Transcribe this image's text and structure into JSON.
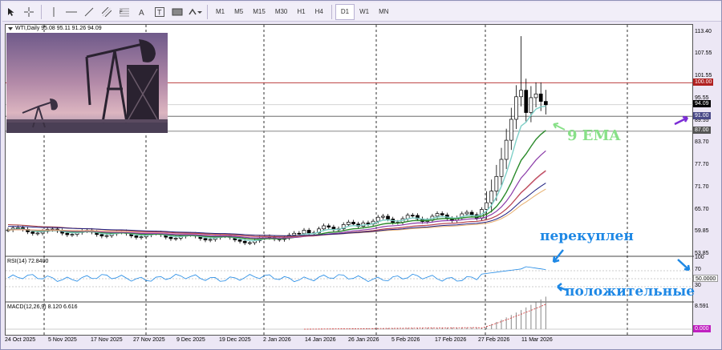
{
  "toolbar": {
    "tools": [
      "cursor-icon",
      "crosshair-icon",
      "vertical-line-icon",
      "horizontal-line-icon",
      "trendline-icon",
      "channel-icon",
      "fibonacci-icon",
      "text-icon",
      "text-label-icon",
      "rectangle-icon",
      "arrow-shapes-icon"
    ],
    "timeframes": [
      "M1",
      "M5",
      "M15",
      "M30",
      "H1",
      "H4",
      "D1",
      "W1",
      "MN"
    ],
    "active_timeframe": "D1"
  },
  "main_header": "WTI,Daily  95.08 95.11 91.26 94.09",
  "rsi_header": "RSI(14) 72.8400",
  "macd_header": "MACD(12,26,9) 8.120 6.616",
  "price_axis": [
    "113.40",
    "107.55",
    "101.55",
    "95.55",
    "89.55",
    "83.70",
    "77.70",
    "71.70",
    "65.70",
    "59.85",
    "53.85"
  ],
  "price_tags": [
    {
      "label": "100.00",
      "bg": "#b02020"
    },
    {
      "label": "94.09",
      "bg": "#000000"
    },
    {
      "label": "91.00",
      "bg": "#4a4a88"
    },
    {
      "label": "87.00",
      "bg": "#555555"
    }
  ],
  "rsi_axis": [
    "100",
    "70",
    "50.0000",
    "30"
  ],
  "macd_axis": [
    "8.591",
    "0.000"
  ],
  "x_axis": [
    "24 Oct 2025",
    "5 Nov 2025",
    "17 Nov 2025",
    "27 Nov 2025",
    "9 Dec 2025",
    "19 Dec 2025",
    "2 Jan 2026",
    "14 Jan 2026",
    "26 Jan 2026",
    "5 Feb 2026",
    "17 Feb 2026",
    "27 Feb 2026",
    "11 Mar 2026"
  ],
  "annotations": {
    "ema": "9 EMA",
    "overbought": "перекуплен",
    "positive": "положительные"
  },
  "colors": {
    "ema9": "#7fd0c8",
    "annotation_green": "#88e088",
    "annotation_blue": "#1e88e5",
    "arrow_purple": "#7b2cd6",
    "resistance": "#b02020"
  },
  "chart_data": {
    "type": "candlestick",
    "symbol": "WTI",
    "timeframe": "Daily",
    "last_bar": {
      "open": 95.08,
      "high": 95.11,
      "low": 91.26,
      "close": 94.09
    },
    "ylim": [
      53.85,
      113.4
    ],
    "levels": [
      100.0,
      94.09,
      91.0,
      87.0
    ],
    "rsi": {
      "period": 14,
      "value": 72.84,
      "levels": [
        70,
        50,
        30
      ]
    },
    "macd": {
      "params": "12,26,9",
      "macd": 8.12,
      "signal": 6.616
    }
  }
}
